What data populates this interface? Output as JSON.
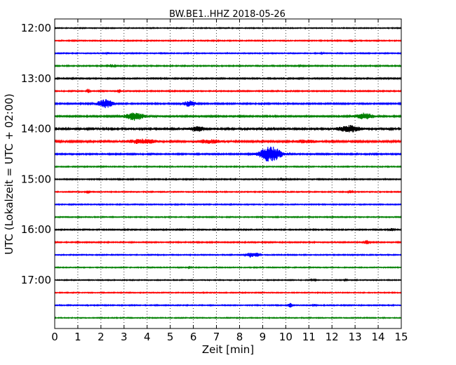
{
  "chart_data": {
    "type": "line",
    "title": "BW.BE1..HHZ 2018-05-26",
    "xlabel": "Zeit  [min]",
    "ylabel": "UTC (Lokalzeit = UTC + 02:00)",
    "xlim": [
      0,
      15
    ],
    "x_ticks": [
      0,
      1,
      2,
      3,
      4,
      5,
      6,
      7,
      8,
      9,
      10,
      11,
      12,
      13,
      14,
      15
    ],
    "y_tick_labels": [
      "12:00",
      "13:00",
      "14:00",
      "15:00",
      "16:00",
      "17:00"
    ],
    "grid": "vertical dotted",
    "trace_colors": [
      "#000000",
      "#ff0000",
      "#0000ff",
      "#008000"
    ],
    "traces": [
      {
        "start": "12:00",
        "noise": 0.4,
        "events": []
      },
      {
        "start": "12:15",
        "noise": 0.45,
        "events": [
          {
            "t": 12.85,
            "amp": 1.2,
            "dur": 0.05
          }
        ]
      },
      {
        "start": "12:30",
        "noise": 0.45,
        "events": [
          {
            "t": 2.3,
            "amp": 0.8,
            "dur": 0.05
          },
          {
            "t": 11.6,
            "amp": 0.8,
            "dur": 0.05
          }
        ]
      },
      {
        "start": "12:45",
        "noise": 0.5,
        "events": [
          {
            "t": 2.45,
            "amp": 1.4,
            "dur": 0.12
          },
          {
            "t": 10.7,
            "amp": 0.8,
            "dur": 0.1
          }
        ]
      },
      {
        "start": "13:00",
        "noise": 0.55,
        "events": []
      },
      {
        "start": "13:15",
        "noise": 0.5,
        "events": [
          {
            "t": 1.45,
            "amp": 2.5,
            "dur": 0.06
          },
          {
            "t": 2.8,
            "amp": 1.6,
            "dur": 0.05
          }
        ]
      },
      {
        "start": "13:30",
        "noise": 0.6,
        "events": [
          {
            "t": 2.2,
            "amp": 4.2,
            "dur": 0.35
          },
          {
            "t": 5.85,
            "amp": 3.0,
            "dur": 0.25
          },
          {
            "t": 8.95,
            "amp": 1.2,
            "dur": 0.08
          }
        ]
      },
      {
        "start": "13:45",
        "noise": 0.65,
        "events": [
          {
            "t": 3.45,
            "amp": 4.0,
            "dur": 0.4
          },
          {
            "t": 13.4,
            "amp": 3.0,
            "dur": 0.4
          }
        ]
      },
      {
        "start": "14:00",
        "noise": 0.95,
        "events": [
          {
            "t": 6.2,
            "amp": 2.0,
            "dur": 0.3
          },
          {
            "t": 12.75,
            "amp": 3.0,
            "dur": 0.45
          }
        ]
      },
      {
        "start": "14:15",
        "noise": 0.85,
        "events": [
          {
            "t": 3.8,
            "amp": 2.0,
            "dur": 0.6
          },
          {
            "t": 6.7,
            "amp": 1.6,
            "dur": 0.55
          },
          {
            "t": 10.9,
            "amp": 1.3,
            "dur": 0.45
          }
        ]
      },
      {
        "start": "14:30",
        "noise": 0.6,
        "events": [
          {
            "t": 9.35,
            "amp": 8.0,
            "dur": 0.45
          }
        ]
      },
      {
        "start": "14:45",
        "noise": 0.45,
        "events": []
      },
      {
        "start": "15:00",
        "noise": 0.5,
        "events": [
          {
            "t": 9.9,
            "amp": 1.0,
            "dur": 0.1
          }
        ]
      },
      {
        "start": "15:15",
        "noise": 0.45,
        "events": [
          {
            "t": 1.45,
            "amp": 2.0,
            "dur": 0.06
          },
          {
            "t": 12.8,
            "amp": 1.6,
            "dur": 0.08
          }
        ]
      },
      {
        "start": "15:30",
        "noise": 0.45,
        "events": []
      },
      {
        "start": "15:45",
        "noise": 0.45,
        "events": []
      },
      {
        "start": "16:00",
        "noise": 0.5,
        "events": [
          {
            "t": 14.6,
            "amp": 1.3,
            "dur": 0.12
          }
        ]
      },
      {
        "start": "16:15",
        "noise": 0.5,
        "events": [
          {
            "t": 13.5,
            "amp": 2.0,
            "dur": 0.1
          }
        ]
      },
      {
        "start": "16:30",
        "noise": 0.45,
        "events": [
          {
            "t": 8.45,
            "amp": 2.5,
            "dur": 0.15
          },
          {
            "t": 8.75,
            "amp": 2.0,
            "dur": 0.12
          }
        ]
      },
      {
        "start": "16:45",
        "noise": 0.4,
        "events": [
          {
            "t": 5.85,
            "amp": 1.3,
            "dur": 0.06
          }
        ]
      },
      {
        "start": "17:00",
        "noise": 0.4,
        "events": [
          {
            "t": 11.2,
            "amp": 0.8,
            "dur": 0.1
          },
          {
            "t": 12.6,
            "amp": 0.9,
            "dur": 0.06
          }
        ]
      },
      {
        "start": "17:15",
        "noise": 0.4,
        "events": []
      },
      {
        "start": "17:30",
        "noise": 0.45,
        "events": [
          {
            "t": 10.2,
            "amp": 2.0,
            "dur": 0.08
          },
          {
            "t": 11.25,
            "amp": 1.3,
            "dur": 0.05
          }
        ]
      },
      {
        "start": "17:45",
        "noise": 0.4,
        "events": []
      }
    ]
  }
}
